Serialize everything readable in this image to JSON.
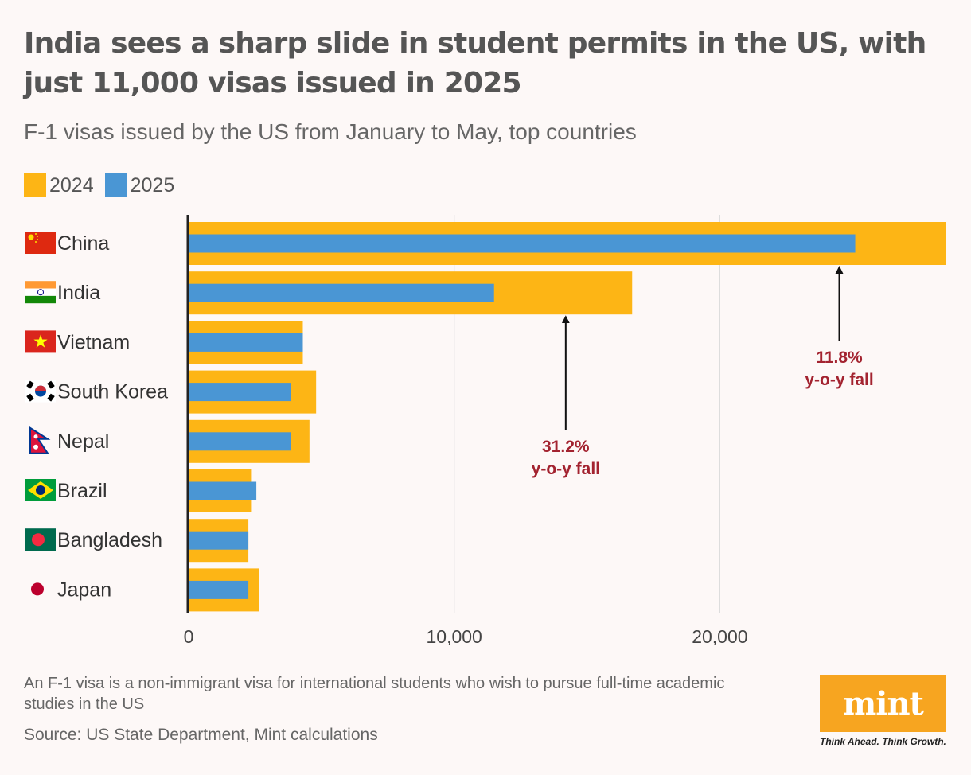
{
  "title": "India sees a sharp slide in student permits in the US, with just 11,000 visas issued in 2025",
  "subtitle": "F-1 visas issued by the US from January to May, top countries",
  "footnote": "An F-1 visa is a non-immigrant visa for international students who wish to pursue full-time academic studies in the US",
  "source": "Source: US State Department, Mint calculations",
  "logo": {
    "text": "mint",
    "tagline": "Think Ahead. Think Growth."
  },
  "colors": {
    "2024": "#fdb515",
    "2025": "#4a96d4",
    "annotation": "#a32330"
  },
  "chart_data": {
    "type": "bar",
    "orientation": "horizontal",
    "categories": [
      "China",
      "India",
      "Vietnam",
      "South Korea",
      "Nepal",
      "Brazil",
      "Bangladesh",
      "Japan"
    ],
    "category_icons": [
      "china-flag-icon",
      "india-flag-icon",
      "vietnam-flag-icon",
      "south-korea-flag-icon",
      "nepal-flag-icon",
      "brazil-flag-icon",
      "bangladesh-flag-icon",
      "japan-flag-icon"
    ],
    "series": [
      {
        "name": "2024",
        "values": [
          28500,
          16700,
          4300,
          4800,
          4550,
          2350,
          2250,
          2650
        ]
      },
      {
        "name": "2025",
        "values": [
          25100,
          11500,
          4300,
          3850,
          3850,
          2550,
          2250,
          2250
        ]
      }
    ],
    "xlim": [
      0,
      28500
    ],
    "xticks": [
      0,
      10000,
      20000
    ],
    "xtick_labels": [
      "0",
      "10,000",
      "20,000"
    ],
    "grid": true,
    "legend_position": "top-left",
    "annotations": [
      {
        "category": "India",
        "line1": "31.2%",
        "line2": "y-o-y fall",
        "x": 14200
      },
      {
        "category": "China",
        "line1": "11.8%",
        "line2": "y-o-y fall",
        "x": 24500
      }
    ]
  }
}
